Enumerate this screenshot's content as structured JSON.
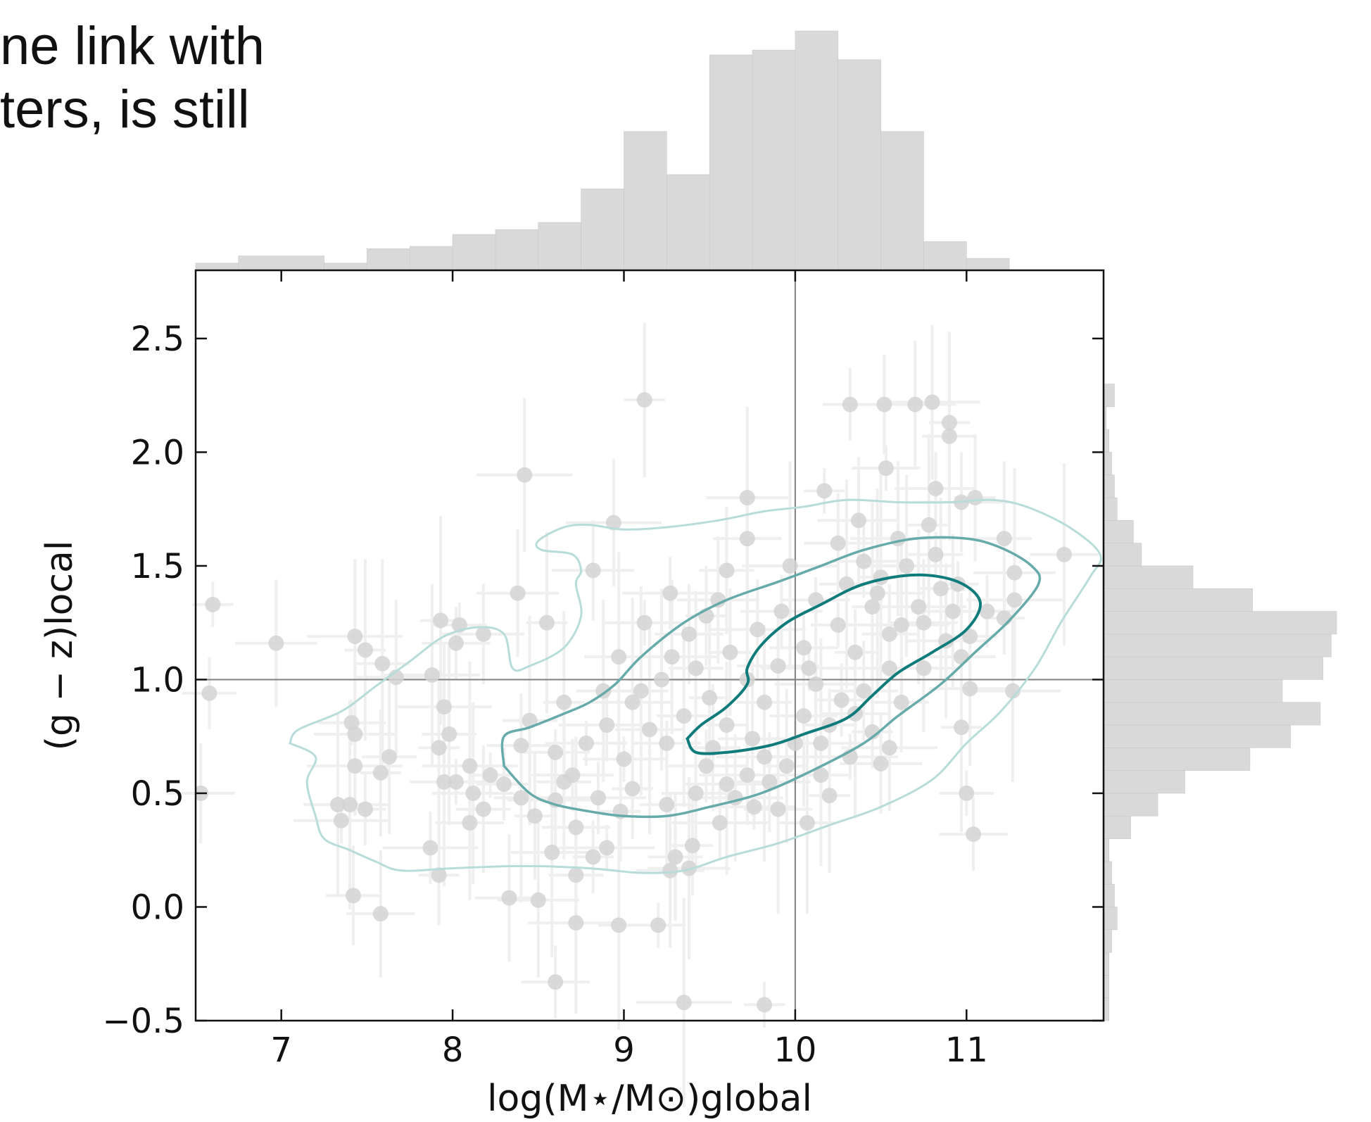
{
  "page_text": {
    "line1": "ne link with",
    "line2": "ters, is still"
  },
  "chart_data": {
    "type": "scatter",
    "title": "",
    "xlabel": "log(M⋆/M⊙)global",
    "ylabel": "(g − z)local",
    "xlim": [
      6.5,
      11.8
    ],
    "ylim": [
      -0.5,
      2.8
    ],
    "x_ticks": [
      "7",
      "8",
      "9",
      "10",
      "11"
    ],
    "y_ticks": [
      "−0.5",
      "0.0",
      "0.5",
      "1.0",
      "1.5",
      "2.0",
      "2.5"
    ],
    "reference_lines": {
      "x": 10.0,
      "y": 1.0
    },
    "grid": false,
    "colors": {
      "points": "#d3d3d3",
      "errorbars": "#efefef",
      "hist": "#d9d9d9",
      "contour_outer": "#b7dcda",
      "contour_mid": "#66abaa",
      "contour_inner": "#0f7b7b",
      "reference": "#808080"
    },
    "x_hist": {
      "bin_edges": [
        6.5,
        6.75,
        7.25,
        7.5,
        7.75,
        8.0,
        8.25,
        8.5,
        8.75,
        9.0,
        9.25,
        9.5,
        9.75,
        10.0,
        10.25,
        10.5,
        10.75,
        11.0,
        11.25,
        11.5
      ],
      "heights": [
        0.03,
        0.06,
        0.03,
        0.09,
        0.1,
        0.15,
        0.17,
        0.2,
        0.34,
        0.58,
        0.4,
        0.9,
        0.92,
        1.0,
        0.88,
        0.58,
        0.12,
        0.05,
        0.0
      ]
    },
    "y_hist": {
      "bin_edges": [
        -0.5,
        -0.4,
        -0.3,
        -0.2,
        -0.1,
        0.0,
        0.1,
        0.2,
        0.3,
        0.4,
        0.5,
        0.6,
        0.7,
        0.8,
        0.9,
        1.0,
        1.1,
        1.2,
        1.3,
        1.4,
        1.5,
        1.6,
        1.7,
        1.8,
        1.9,
        2.0,
        2.1,
        2.2,
        2.3
      ],
      "heights": [
        0.02,
        0.02,
        0.02,
        0.03,
        0.05,
        0.04,
        0.03,
        0.02,
        0.1,
        0.2,
        0.3,
        0.54,
        0.69,
        0.8,
        0.66,
        0.81,
        0.84,
        0.86,
        0.55,
        0.33,
        0.14,
        0.11,
        0.05,
        0.04,
        0.03,
        0.02,
        0.01,
        0.04
      ]
    },
    "series": [
      {
        "points": [
          [
            6.6,
            1.33
          ],
          [
            6.58,
            0.94
          ],
          [
            6.53,
            0.5
          ],
          [
            6.97,
            1.16
          ],
          [
            7.43,
            1.19
          ],
          [
            7.49,
            1.13
          ],
          [
            7.59,
            1.07
          ],
          [
            7.41,
            0.81
          ],
          [
            7.43,
            0.76
          ],
          [
            7.43,
            0.62
          ],
          [
            7.58,
            0.59
          ],
          [
            7.63,
            0.66
          ],
          [
            7.33,
            0.45
          ],
          [
            7.4,
            0.45
          ],
          [
            7.35,
            0.38
          ],
          [
            7.49,
            0.43
          ],
          [
            7.42,
            0.05
          ],
          [
            7.58,
            -0.03
          ],
          [
            7.67,
            1.01
          ],
          [
            7.88,
            1.02
          ],
          [
            7.93,
            1.26
          ],
          [
            8.04,
            1.24
          ],
          [
            8.02,
            1.16
          ],
          [
            8.18,
            1.2
          ],
          [
            7.95,
            0.88
          ],
          [
            7.92,
            0.7
          ],
          [
            7.98,
            0.76
          ],
          [
            7.95,
            0.55
          ],
          [
            8.02,
            0.55
          ],
          [
            7.87,
            0.26
          ],
          [
            7.92,
            0.14
          ],
          [
            8.18,
            0.43
          ],
          [
            8.1,
            0.37
          ],
          [
            8.12,
            0.5
          ],
          [
            8.1,
            0.62
          ],
          [
            8.22,
            0.58
          ],
          [
            8.3,
            0.54
          ],
          [
            8.4,
            0.71
          ],
          [
            8.38,
            1.38
          ],
          [
            8.42,
            1.9
          ],
          [
            8.55,
            1.25
          ],
          [
            8.45,
            0.82
          ],
          [
            8.6,
            0.68
          ],
          [
            8.7,
            0.58
          ],
          [
            8.6,
            0.47
          ],
          [
            8.48,
            0.4
          ],
          [
            8.65,
            0.55
          ],
          [
            8.72,
            0.35
          ],
          [
            8.58,
            0.24
          ],
          [
            8.9,
            0.26
          ],
          [
            8.82,
            0.22
          ],
          [
            8.72,
            0.14
          ],
          [
            8.33,
            0.04
          ],
          [
            8.5,
            0.03
          ],
          [
            8.72,
            -0.07
          ],
          [
            8.97,
            -0.08
          ],
          [
            9.2,
            -0.08
          ],
          [
            8.6,
            -0.33
          ],
          [
            8.82,
            1.48
          ],
          [
            8.94,
            1.69
          ],
          [
            9.12,
            2.23
          ],
          [
            8.88,
            0.95
          ],
          [
            8.97,
            1.1
          ],
          [
            9.12,
            1.25
          ],
          [
            9.27,
            1.38
          ],
          [
            9.48,
            1.28
          ],
          [
            9.6,
            1.48
          ],
          [
            9.72,
            1.62
          ],
          [
            9.72,
            1.8
          ],
          [
            9.97,
            1.5
          ],
          [
            10.17,
            1.83
          ],
          [
            10.32,
            2.21
          ],
          [
            10.52,
            2.21
          ],
          [
            10.7,
            2.21
          ],
          [
            10.8,
            2.22
          ],
          [
            10.9,
            2.13
          ],
          [
            10.9,
            2.07
          ],
          [
            10.53,
            1.93
          ],
          [
            10.82,
            1.84
          ],
          [
            10.97,
            1.78
          ],
          [
            11.05,
            1.8
          ],
          [
            11.22,
            1.62
          ],
          [
            11.57,
            1.55
          ],
          [
            11.28,
            1.47
          ],
          [
            11.28,
            1.35
          ],
          [
            11.22,
            1.27
          ],
          [
            11.02,
            1.19
          ],
          [
            10.97,
            1.1
          ],
          [
            11.02,
            0.96
          ],
          [
            11.27,
            0.95
          ],
          [
            10.97,
            0.79
          ],
          [
            11.0,
            0.5
          ],
          [
            11.04,
            0.32
          ],
          [
            10.5,
            0.63
          ],
          [
            10.55,
            0.7
          ],
          [
            10.2,
            0.49
          ],
          [
            10.07,
            0.37
          ],
          [
            9.9,
            0.43
          ],
          [
            9.76,
            0.44
          ],
          [
            9.56,
            0.37
          ],
          [
            9.4,
            0.27
          ],
          [
            9.3,
            0.22
          ],
          [
            9.27,
            0.16
          ],
          [
            9.38,
            0.17
          ],
          [
            9.35,
            -0.42
          ],
          [
            9.82,
            -0.43
          ],
          [
            10.27,
            0.91
          ],
          [
            10.25,
            1.6
          ],
          [
            10.37,
            1.7
          ],
          [
            10.6,
            1.62
          ],
          [
            10.78,
            1.68
          ],
          [
            9.1,
            0.95
          ],
          [
            9.25,
            0.72
          ],
          [
            9.48,
            0.62
          ],
          [
            9.72,
            0.58
          ],
          [
            9.6,
            0.8
          ],
          [
            9.82,
            0.9
          ],
          [
            10.05,
            0.84
          ],
          [
            10.15,
            0.72
          ],
          [
            10.32,
            0.66
          ],
          [
            10.45,
            0.77
          ],
          [
            10.62,
            0.9
          ],
          [
            10.75,
            1.05
          ],
          [
            10.88,
            1.17
          ],
          [
            10.62,
            1.24
          ],
          [
            10.45,
            1.32
          ],
          [
            10.25,
            1.24
          ],
          [
            10.05,
            1.14
          ],
          [
            9.9,
            1.06
          ],
          [
            9.72,
            1.0
          ],
          [
            9.5,
            0.92
          ],
          [
            9.35,
            0.84
          ],
          [
            9.15,
            0.78
          ],
          [
            9.0,
            0.65
          ],
          [
            8.9,
            0.8
          ],
          [
            9.05,
            0.52
          ],
          [
            9.25,
            0.45
          ],
          [
            9.42,
            0.5
          ],
          [
            9.6,
            0.54
          ],
          [
            9.82,
            0.66
          ],
          [
            10.0,
            0.72
          ],
          [
            10.2,
            0.8
          ],
          [
            10.4,
            0.95
          ],
          [
            10.55,
            1.05
          ],
          [
            10.72,
            1.32
          ],
          [
            10.85,
            1.4
          ],
          [
            10.3,
            1.42
          ],
          [
            10.12,
            1.35
          ],
          [
            9.92,
            1.3
          ],
          [
            9.78,
            1.22
          ],
          [
            9.62,
            1.12
          ],
          [
            9.42,
            1.05
          ],
          [
            9.22,
            1.0
          ],
          [
            9.05,
            0.9
          ],
          [
            10.08,
            1.05
          ],
          [
            10.35,
            1.12
          ],
          [
            10.55,
            1.2
          ],
          [
            10.75,
            1.25
          ],
          [
            10.92,
            1.3
          ],
          [
            10.65,
            1.5
          ],
          [
            10.5,
            1.45
          ],
          [
            10.82,
            1.55
          ],
          [
            10.4,
            1.52
          ],
          [
            9.85,
            0.55
          ],
          [
            9.65,
            0.48
          ],
          [
            9.95,
            0.62
          ],
          [
            10.15,
            0.58
          ],
          [
            10.35,
            0.85
          ],
          [
            8.78,
            0.72
          ],
          [
            8.85,
            0.48
          ],
          [
            8.98,
            0.42
          ],
          [
            9.52,
            0.7
          ],
          [
            9.75,
            0.74
          ],
          [
            10.12,
            0.98
          ],
          [
            10.48,
            1.38
          ],
          [
            10.95,
            1.42
          ],
          [
            11.12,
            1.3
          ],
          [
            9.38,
            1.2
          ],
          [
            9.55,
            1.35
          ],
          [
            9.28,
            1.1
          ],
          [
            8.65,
            0.9
          ],
          [
            8.4,
            0.48
          ]
        ]
      }
    ],
    "contours": [
      {
        "level": "outer",
        "points": [
          [
            7.05,
            0.72
          ],
          [
            7.2,
            0.66
          ],
          [
            7.15,
            0.55
          ],
          [
            7.2,
            0.4
          ],
          [
            7.25,
            0.3
          ],
          [
            7.4,
            0.25
          ],
          [
            7.55,
            0.2
          ],
          [
            7.7,
            0.16
          ],
          [
            8.0,
            0.17
          ],
          [
            8.4,
            0.18
          ],
          [
            8.8,
            0.17
          ],
          [
            9.1,
            0.15
          ],
          [
            9.35,
            0.16
          ],
          [
            9.6,
            0.22
          ],
          [
            9.9,
            0.28
          ],
          [
            10.2,
            0.36
          ],
          [
            10.5,
            0.44
          ],
          [
            10.8,
            0.56
          ],
          [
            11.0,
            0.72
          ],
          [
            11.2,
            0.86
          ],
          [
            11.4,
            1.05
          ],
          [
            11.55,
            1.25
          ],
          [
            11.72,
            1.45
          ],
          [
            11.78,
            1.55
          ],
          [
            11.6,
            1.67
          ],
          [
            11.35,
            1.76
          ],
          [
            11.15,
            1.79
          ],
          [
            10.9,
            1.78
          ],
          [
            10.6,
            1.78
          ],
          [
            10.3,
            1.79
          ],
          [
            10.05,
            1.76
          ],
          [
            9.82,
            1.74
          ],
          [
            9.55,
            1.7
          ],
          [
            9.25,
            1.67
          ],
          [
            9.0,
            1.66
          ],
          [
            8.8,
            1.68
          ],
          [
            8.65,
            1.67
          ],
          [
            8.5,
            1.61
          ],
          [
            8.52,
            1.57
          ],
          [
            8.7,
            1.55
          ],
          [
            8.75,
            1.48
          ],
          [
            8.72,
            1.42
          ],
          [
            8.75,
            1.28
          ],
          [
            8.65,
            1.14
          ],
          [
            8.45,
            1.06
          ],
          [
            8.35,
            1.05
          ],
          [
            8.3,
            1.2
          ],
          [
            8.15,
            1.23
          ],
          [
            7.95,
            1.19
          ],
          [
            7.75,
            1.08
          ],
          [
            7.55,
            0.97
          ],
          [
            7.35,
            0.86
          ],
          [
            7.1,
            0.78
          ],
          [
            7.05,
            0.72
          ]
        ]
      },
      {
        "level": "middle",
        "points": [
          [
            8.3,
            0.62
          ],
          [
            8.45,
            0.5
          ],
          [
            8.6,
            0.45
          ],
          [
            8.8,
            0.42
          ],
          [
            9.0,
            0.4
          ],
          [
            9.25,
            0.4
          ],
          [
            9.5,
            0.44
          ],
          [
            9.8,
            0.5
          ],
          [
            10.1,
            0.6
          ],
          [
            10.4,
            0.72
          ],
          [
            10.6,
            0.84
          ],
          [
            10.85,
            0.98
          ],
          [
            11.05,
            1.12
          ],
          [
            11.25,
            1.26
          ],
          [
            11.42,
            1.42
          ],
          [
            11.38,
            1.5
          ],
          [
            11.2,
            1.58
          ],
          [
            11.0,
            1.62
          ],
          [
            10.7,
            1.62
          ],
          [
            10.4,
            1.57
          ],
          [
            10.15,
            1.5
          ],
          [
            9.9,
            1.43
          ],
          [
            9.6,
            1.35
          ],
          [
            9.35,
            1.25
          ],
          [
            9.1,
            1.1
          ],
          [
            8.95,
            0.98
          ],
          [
            8.8,
            0.9
          ],
          [
            8.65,
            0.85
          ],
          [
            8.45,
            0.79
          ],
          [
            8.3,
            0.75
          ],
          [
            8.3,
            0.62
          ]
        ]
      },
      {
        "level": "inner",
        "points": [
          [
            9.37,
            0.74
          ],
          [
            9.45,
            0.8
          ],
          [
            9.6,
            0.88
          ],
          [
            9.72,
            0.98
          ],
          [
            9.72,
            1.05
          ],
          [
            9.8,
            1.15
          ],
          [
            9.95,
            1.25
          ],
          [
            10.15,
            1.33
          ],
          [
            10.4,
            1.42
          ],
          [
            10.7,
            1.46
          ],
          [
            10.95,
            1.43
          ],
          [
            11.08,
            1.34
          ],
          [
            11.0,
            1.22
          ],
          [
            10.8,
            1.12
          ],
          [
            10.6,
            1.03
          ],
          [
            10.45,
            0.93
          ],
          [
            10.3,
            0.83
          ],
          [
            10.05,
            0.76
          ],
          [
            9.85,
            0.71
          ],
          [
            9.6,
            0.68
          ],
          [
            9.42,
            0.68
          ],
          [
            9.37,
            0.74
          ]
        ]
      }
    ]
  }
}
